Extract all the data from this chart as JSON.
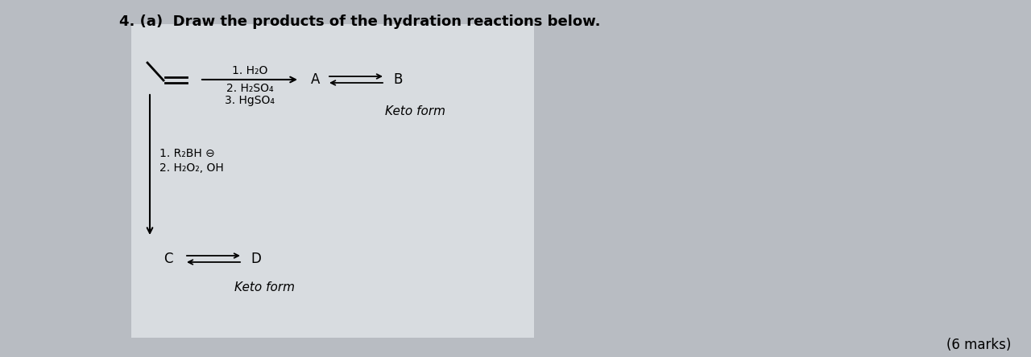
{
  "title": "4. (a)  Draw the products of the hydration reactions below.",
  "title_fontsize": 13,
  "bg_color": "#b8bcc2",
  "box_color": "#d8dce0",
  "marks_text": "(6 marks)",
  "reaction1_conditions": [
    "1. H₂O",
    "2. H₂SO₄",
    "3. HgSO₄"
  ],
  "label_A": "A",
  "label_B": "B",
  "label_C": "C",
  "label_D": "D",
  "keto_form_1": "Keto form",
  "keto_form_2": "Keto form",
  "reagent_bottom_1": "1. R₂BH ⊖",
  "reagent_bottom_2": "2. H₂O₂, OH"
}
